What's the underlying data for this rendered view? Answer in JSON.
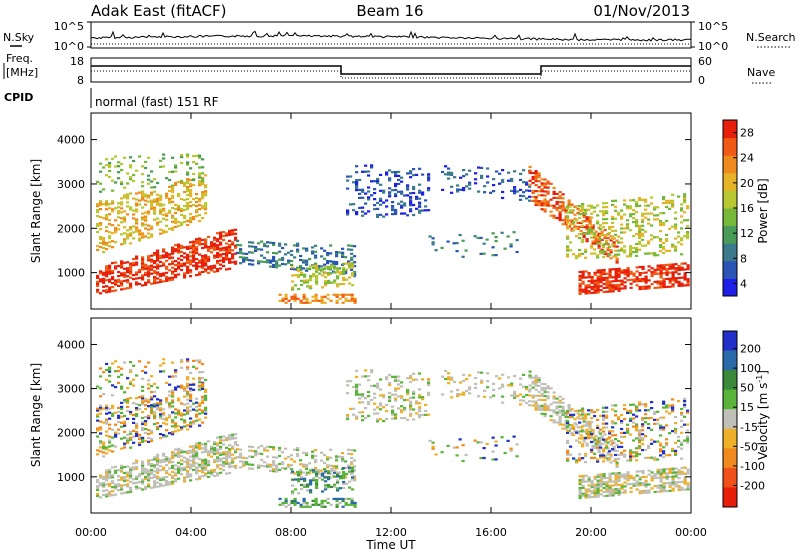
{
  "header": {
    "station": "Adak East (fitACF)",
    "beam": "Beam 16",
    "date": "01/Nov/2013"
  },
  "summary_panels": {
    "nsky": {
      "label": "N.Sky",
      "right_label": "N.Search",
      "left_ticks": [
        "10^5",
        "10^0"
      ],
      "right_ticks": [
        "10^5",
        "10^0"
      ]
    },
    "freq": {
      "label_line1": "Freq.",
      "label_line2": "[MHz]",
      "right_label": "Nave",
      "left_ticks": [
        "18",
        "8"
      ],
      "right_ticks": [
        "60",
        "0"
      ]
    },
    "cpid": {
      "label": "CPID",
      "text": "normal (fast) 151 RF"
    }
  },
  "chart_data": [
    {
      "type": "heatmap",
      "name": "power",
      "ylabel": "Slant Range [km]",
      "xlabel": "",
      "ylim": [
        180,
        4600
      ],
      "yticks": [
        1000,
        2000,
        3000,
        4000
      ],
      "xlim_hours": [
        0,
        24
      ],
      "colorbar": {
        "label": "Power [dB]",
        "ticks": [
          4,
          8,
          12,
          16,
          20,
          24,
          28
        ],
        "colors": [
          "#1e1ee6",
          "#2b55b4",
          "#3b7a8c",
          "#4a9a58",
          "#76b83a",
          "#b8c832",
          "#e6b428",
          "#ef8a1e",
          "#f05a14",
          "#e6200a"
        ]
      }
    },
    {
      "type": "heatmap",
      "name": "velocity",
      "ylabel": "Slant Range [km]",
      "xlabel": "Time UT",
      "ylim": [
        180,
        4600
      ],
      "yticks": [
        1000,
        2000,
        3000,
        4000
      ],
      "xlim_hours": [
        0,
        24
      ],
      "xticks": [
        "00:00",
        "04:00",
        "08:00",
        "12:00",
        "16:00",
        "20:00",
        "00:00"
      ],
      "colorbar": {
        "label": "Velocity [m s",
        "label_sup": "-1",
        "label_end": "]",
        "ticks": [
          "200",
          "100",
          "50",
          "15",
          "-15",
          "-50",
          "-100",
          "-200"
        ],
        "colors": [
          "#2030c8",
          "#2a6aa8",
          "#3a8a3a",
          "#5ab43a",
          "#c0c0b8",
          "#eeb028",
          "#f08a1e",
          "#f0501a",
          "#e61e0a"
        ]
      }
    }
  ]
}
